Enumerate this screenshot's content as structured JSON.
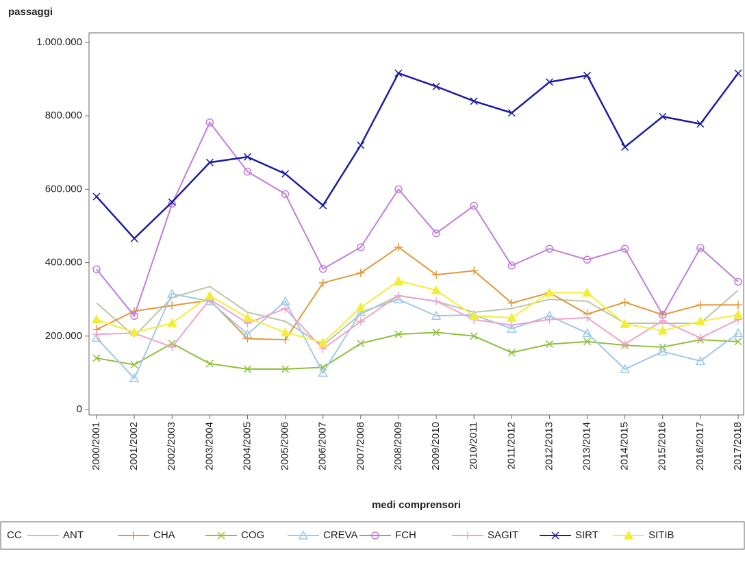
{
  "chart_data": {
    "type": "line",
    "title": "passaggi",
    "x_label": "medi comprensori",
    "legend_title": "CC",
    "categories": [
      "2000/2001",
      "2001/2002",
      "2002/2003",
      "2003/2004",
      "2004/2005",
      "2005/2006",
      "2006/2007",
      "2007/2008",
      "2008/2009",
      "2009/2010",
      "2010/2011",
      "2011/2012",
      "2012/2013",
      "2013/2014",
      "2014/2015",
      "2015/2016",
      "2016/2017",
      "2017/2018"
    ],
    "series": [
      {
        "name": "ANT",
        "color": "#b8c8a4",
        "marker": "none",
        "values": [
          290000,
          200000,
          305000,
          335000,
          265000,
          240000,
          175000,
          260000,
          310000,
          295000,
          265000,
          275000,
          300000,
          295000,
          235000,
          235000,
          235000,
          325000
        ]
      },
      {
        "name": "CHA",
        "color": "#e0983a",
        "marker": "plus",
        "values": [
          218000,
          268000,
          283000,
          298000,
          193000,
          190000,
          345000,
          372000,
          442000,
          367000,
          378000,
          290000,
          318000,
          260000,
          292000,
          258000,
          285000,
          285000
        ]
      },
      {
        "name": "COG",
        "color": "#8cc03a",
        "marker": "x",
        "values": [
          140000,
          122000,
          180000,
          125000,
          110000,
          110000,
          115000,
          180000,
          205000,
          210000,
          200000,
          155000,
          178000,
          185000,
          175000,
          170000,
          190000,
          185000
        ]
      },
      {
        "name": "CREVA",
        "color": "#9ec8ea",
        "marker": "triangle",
        "values": [
          195000,
          85000,
          315000,
          295000,
          205000,
          295000,
          100000,
          265000,
          300000,
          255000,
          258000,
          220000,
          255000,
          208000,
          110000,
          158000,
          132000,
          208000
        ]
      },
      {
        "name": "FCH",
        "color": "#c07cdc",
        "marker": "circle",
        "values": [
          382000,
          255000,
          560000,
          782000,
          648000,
          587000,
          383000,
          442000,
          600000,
          480000,
          555000,
          392000,
          438000,
          408000,
          438000,
          258000,
          440000,
          348000
        ]
      },
      {
        "name": "SAGIT",
        "color": "#f0a2ca",
        "marker": "plus",
        "values": [
          205000,
          208000,
          170000,
          300000,
          235000,
          275000,
          165000,
          240000,
          310000,
          295000,
          245000,
          230000,
          245000,
          250000,
          178000,
          242000,
          195000,
          245000
        ]
      },
      {
        "name": "SIRT",
        "color": "#1c1ca0",
        "marker": "x",
        "values": [
          580000,
          466000,
          565000,
          673000,
          688000,
          642000,
          556000,
          720000,
          916000,
          880000,
          840000,
          808000,
          892000,
          910000,
          715000,
          798000,
          778000,
          916000
        ]
      },
      {
        "name": "SITIB",
        "color": "#f2ee38",
        "marker": "triangle-filled",
        "values": [
          245000,
          210000,
          235000,
          310000,
          250000,
          210000,
          182000,
          278000,
          350000,
          325000,
          255000,
          250000,
          318000,
          318000,
          233000,
          215000,
          240000,
          258000
        ]
      }
    ],
    "ylim": [
      0,
      1026000
    ],
    "yticks": [
      0,
      {
        "value": 200000,
        "label": "200.000"
      },
      {
        "value": 400000,
        "label": "400.000"
      },
      {
        "value": 600000,
        "label": "600.000"
      },
      {
        "value": 800000,
        "label": "800.000"
      },
      {
        "value": 1000000,
        "label": "1.000.000"
      }
    ],
    "grid": false
  }
}
